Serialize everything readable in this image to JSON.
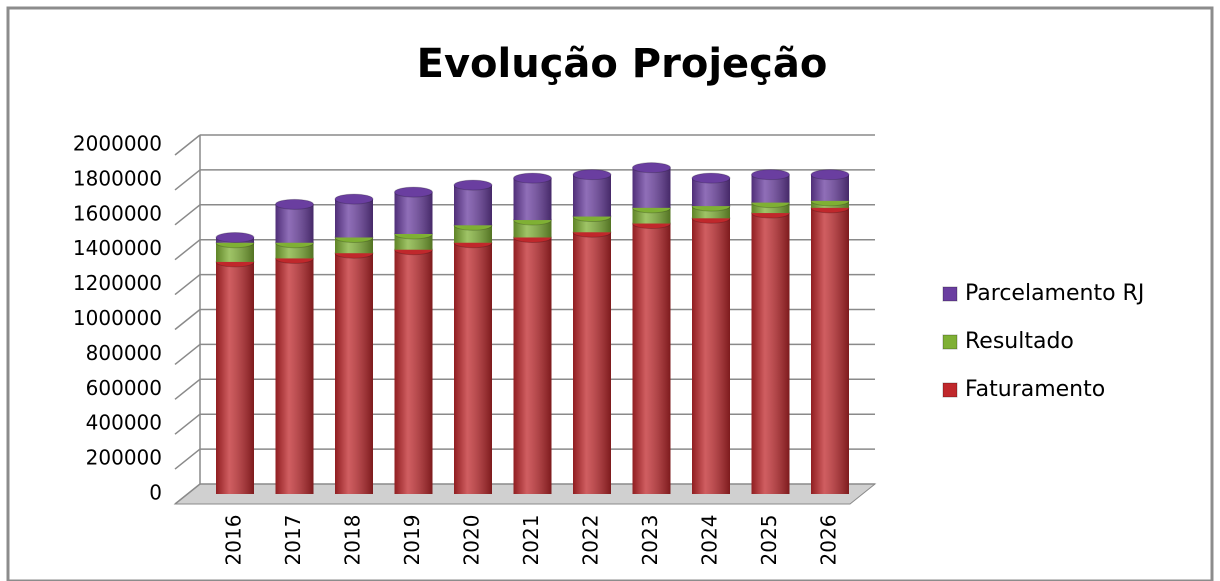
{
  "chart_data": {
    "type": "bar",
    "stacked": true,
    "title": "Evolução Projeção",
    "categories": [
      "2016",
      "2017",
      "2018",
      "2019",
      "2020",
      "2021",
      "2022",
      "2023",
      "2024",
      "2025",
      "2026"
    ],
    "series": [
      {
        "name": "Faturamento",
        "color": "#c0282c",
        "values": [
          1330000,
          1350000,
          1380000,
          1400000,
          1440000,
          1470000,
          1500000,
          1550000,
          1580000,
          1610000,
          1640000
        ]
      },
      {
        "name": "Resultado",
        "color": "#7fb034",
        "values": [
          110000,
          90000,
          90000,
          90000,
          100000,
          100000,
          90000,
          90000,
          70000,
          60000,
          40000
        ]
      },
      {
        "name": "Parcelamento RJ",
        "color": "#6a3ea0",
        "values": [
          30000,
          220000,
          220000,
          240000,
          230000,
          240000,
          240000,
          230000,
          160000,
          160000,
          150000
        ]
      }
    ],
    "ylim": [
      0,
      2000000
    ],
    "yticks": [
      0,
      200000,
      400000,
      600000,
      800000,
      1000000,
      1200000,
      1400000,
      1600000,
      1800000,
      2000000
    ],
    "grid": true,
    "legend": "right"
  }
}
